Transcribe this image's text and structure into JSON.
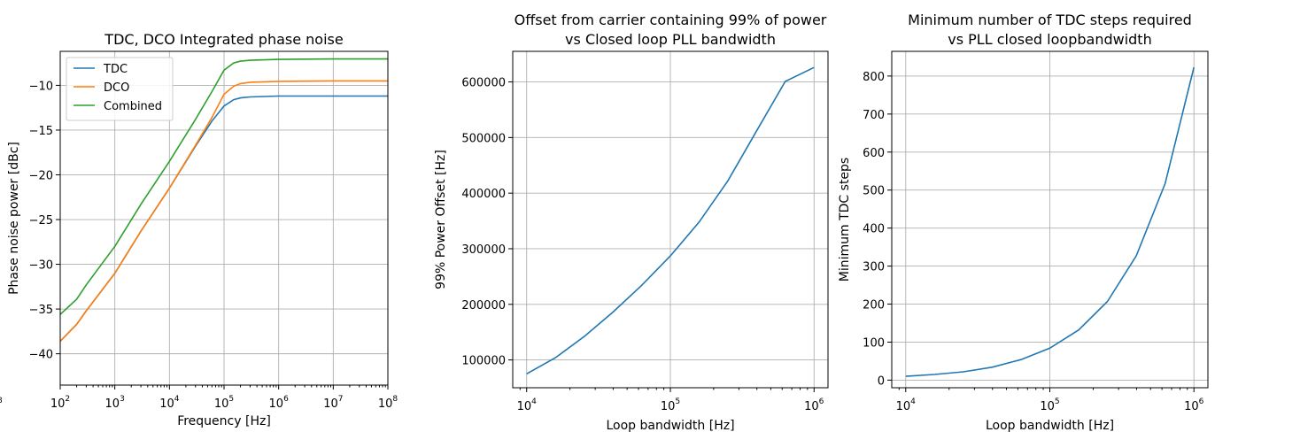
{
  "chart_data": [
    {
      "type": "line",
      "title": "TDC, DCO Integrated phase noise",
      "xlabel": "Frequency [Hz]",
      "ylabel": "Phase noise power [dBc]",
      "xscale": "log",
      "xlim": [
        100,
        100000000
      ],
      "ylim": [
        -43.5,
        -6.2
      ],
      "xticks": [
        100,
        1000,
        10000,
        100000,
        1000000,
        10000000,
        100000000
      ],
      "xtick_labels": [
        {
          "base": "10",
          "exp": "2"
        },
        {
          "base": "10",
          "exp": "3"
        },
        {
          "base": "10",
          "exp": "4"
        },
        {
          "base": "10",
          "exp": "5"
        },
        {
          "base": "10",
          "exp": "6"
        },
        {
          "base": "10",
          "exp": "7"
        },
        {
          "base": "10",
          "exp": "8"
        }
      ],
      "offaxis_tick": "8",
      "yticks": [
        -40,
        -35,
        -30,
        -25,
        -20,
        -15,
        -10
      ],
      "ytick_labels": [
        "−40",
        "−35",
        "−30",
        "−25",
        "−20",
        "−15",
        "−10"
      ],
      "grid": true,
      "legend": "top-left",
      "series": [
        {
          "name": "TDC",
          "color": "#1f77b4",
          "x": [
            100,
            200,
            300,
            1000,
            3000,
            10000,
            30000,
            60000,
            100000,
            150000,
            200000,
            300000,
            1000000,
            10000000,
            100000000
          ],
          "y": [
            -38.6,
            -36.7,
            -35.2,
            -31.0,
            -26.3,
            -21.5,
            -16.8,
            -14.0,
            -12.3,
            -11.6,
            -11.4,
            -11.3,
            -11.2,
            -11.2,
            -11.2
          ]
        },
        {
          "name": "DCO",
          "color": "#ff7f0e",
          "x": [
            100,
            200,
            300,
            1000,
            3000,
            10000,
            30000,
            60000,
            100000,
            150000,
            200000,
            300000,
            1000000,
            10000000,
            100000000
          ],
          "y": [
            -38.6,
            -36.7,
            -35.2,
            -31.0,
            -26.3,
            -21.5,
            -16.7,
            -13.6,
            -11.0,
            -10.1,
            -9.8,
            -9.65,
            -9.55,
            -9.5,
            -9.5
          ]
        },
        {
          "name": "Combined",
          "color": "#2ca02c",
          "x": [
            100,
            200,
            300,
            1000,
            3000,
            10000,
            30000,
            60000,
            100000,
            150000,
            200000,
            300000,
            1000000,
            10000000,
            100000000
          ],
          "y": [
            -35.6,
            -33.9,
            -32.3,
            -28.0,
            -23.3,
            -18.5,
            -13.8,
            -10.7,
            -8.3,
            -7.5,
            -7.3,
            -7.2,
            -7.1,
            -7.05,
            -7.05
          ]
        }
      ]
    },
    {
      "type": "line",
      "title": "Offset from carrier containing 99% of power",
      "subtitle": "vs Closed loop PLL bandwidth",
      "xlabel": "Loop bandwidth [Hz]",
      "ylabel": "99% Power Offset [Hz]",
      "xscale": "log",
      "xlim": [
        8000,
        1250000
      ],
      "ylim": [
        50000,
        655000
      ],
      "xticks": [
        10000,
        100000,
        1000000
      ],
      "xtick_labels": [
        {
          "base": "10",
          "exp": "4"
        },
        {
          "base": "10",
          "exp": "5"
        },
        {
          "base": "10",
          "exp": "6"
        }
      ],
      "yticks": [
        100000,
        200000,
        300000,
        400000,
        500000,
        600000
      ],
      "ytick_labels": [
        "100000",
        "200000",
        "300000",
        "400000",
        "500000",
        "600000"
      ],
      "grid": true,
      "series": [
        {
          "color": "#1f77b4",
          "x": [
            10000,
            15850,
            25120,
            39810,
            63100,
            100000,
            158500,
            251200,
            398100,
            631000,
            1000000
          ],
          "y": [
            75000,
            104000,
            142000,
            186000,
            234000,
            287000,
            348000,
            422000,
            512000,
            601000,
            626000
          ]
        }
      ]
    },
    {
      "type": "line",
      "title": "Minimum number of TDC steps required",
      "subtitle": "vs PLL closed loopbandwidth",
      "xlabel": "Loop bandwidth [Hz]",
      "ylabel": "Minimum TDC steps",
      "xscale": "log",
      "xlim": [
        8000,
        1250000
      ],
      "ylim": [
        -20,
        865
      ],
      "xticks": [
        10000,
        100000,
        1000000
      ],
      "xtick_labels": [
        {
          "base": "10",
          "exp": "4"
        },
        {
          "base": "10",
          "exp": "5"
        },
        {
          "base": "10",
          "exp": "6"
        }
      ],
      "yticks": [
        0,
        100,
        200,
        300,
        400,
        500,
        600,
        700,
        800
      ],
      "ytick_labels": [
        "0",
        "100",
        "200",
        "300",
        "400",
        "500",
        "600",
        "700",
        "800"
      ],
      "grid": true,
      "series": [
        {
          "color": "#1f77b4",
          "x": [
            10000,
            15850,
            25120,
            39810,
            63100,
            100000,
            158500,
            251200,
            398100,
            631000,
            1000000
          ],
          "y": [
            10,
            15,
            22,
            34,
            54,
            84,
            132,
            207,
            327,
            517,
            823
          ]
        }
      ]
    }
  ]
}
